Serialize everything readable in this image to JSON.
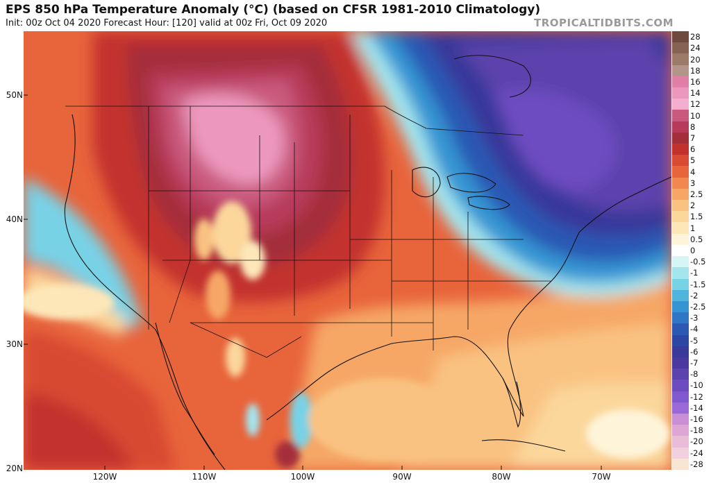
{
  "header": {
    "title": "EPS 850 hPa Temperature Anomaly (°C) (based on CFSR 1981-2010 Climatology)",
    "subtitle": "Init: 00z Oct 04 2020   Forecast Hour: [120]   valid at 00z Fri, Oct 09 2020",
    "credit": "TROPICALTIDBITS.COM"
  },
  "map": {
    "lat_labels": [
      "50N",
      "40N",
      "30N",
      "20N"
    ],
    "lon_labels": [
      "120W",
      "110W",
      "100W",
      "90W",
      "80W",
      "70W"
    ]
  },
  "colorbar": {
    "levels": [
      {
        "label": "28",
        "color": "#6e4a3d"
      },
      {
        "label": "24",
        "color": "#856252"
      },
      {
        "label": "20",
        "color": "#9c7b6b"
      },
      {
        "label": "18",
        "color": "#b39689"
      },
      {
        "label": "16",
        "color": "#e07fa6"
      },
      {
        "label": "14",
        "color": "#ec98bc"
      },
      {
        "label": "12",
        "color": "#f4afd0"
      },
      {
        "label": "10",
        "color": "#c95a7e"
      },
      {
        "label": "8",
        "color": "#b73a5a"
      },
      {
        "label": "7",
        "color": "#a42e3a"
      },
      {
        "label": "6",
        "color": "#c3312d"
      },
      {
        "label": "5",
        "color": "#d84a32"
      },
      {
        "label": "4",
        "color": "#e8643b"
      },
      {
        "label": "3",
        "color": "#f2874f"
      },
      {
        "label": "2.5",
        "color": "#f6a766"
      },
      {
        "label": "2",
        "color": "#f9c281"
      },
      {
        "label": "1.5",
        "color": "#fbd79c"
      },
      {
        "label": "1",
        "color": "#fde7b9"
      },
      {
        "label": "0.5",
        "color": "#fef4d9"
      },
      {
        "label": "0",
        "color": "#ffffff"
      },
      {
        "label": "-0.5",
        "color": "#d6f5f5"
      },
      {
        "label": "-1",
        "color": "#a4e6ee"
      },
      {
        "label": "-1.5",
        "color": "#78d2e6"
      },
      {
        "label": "-2",
        "color": "#4fb5dd"
      },
      {
        "label": "-2.5",
        "color": "#3595d3"
      },
      {
        "label": "-3",
        "color": "#2f76c4"
      },
      {
        "label": "-4",
        "color": "#2b58b3"
      },
      {
        "label": "-5",
        "color": "#2d45a3"
      },
      {
        "label": "-6",
        "color": "#39399a"
      },
      {
        "label": "-7",
        "color": "#4a3a9f"
      },
      {
        "label": "-8",
        "color": "#5c42ac"
      },
      {
        "label": "-10",
        "color": "#6d4cc0"
      },
      {
        "label": "-12",
        "color": "#8058cf"
      },
      {
        "label": "-14",
        "color": "#9a69d8"
      },
      {
        "label": "-16",
        "color": "#c98fd6"
      },
      {
        "label": "-18",
        "color": "#dea6d6"
      },
      {
        "label": "-20",
        "color": "#e9bcd8"
      },
      {
        "label": "-24",
        "color": "#f1d0df"
      },
      {
        "label": "-28",
        "color": "#f8e6d2"
      }
    ]
  }
}
